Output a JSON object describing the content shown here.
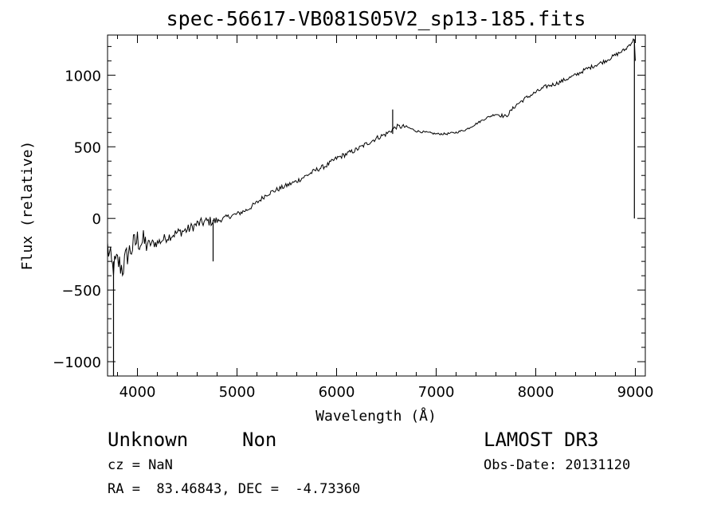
{
  "chart_data": {
    "type": "line",
    "title": "spec-56617-VB081S05V2_sp13-185.fits",
    "xlabel": "Wavelength (Å)",
    "ylabel": "Flux (relative)",
    "xlim": [
      3700,
      9100
    ],
    "ylim": [
      -1100,
      1280
    ],
    "xticks": [
      4000,
      5000,
      6000,
      7000,
      8000,
      9000
    ],
    "yticks": [
      -1000,
      -500,
      0,
      500,
      1000
    ],
    "xtick_labels": [
      "4000",
      "5000",
      "6000",
      "7000",
      "8000",
      "9000"
    ],
    "ytick_labels": [
      "−1000",
      "−500",
      "0",
      "500",
      "1000"
    ],
    "grid": false,
    "series": [
      {
        "x": [
          3700,
          3750,
          3800,
          3850,
          3900,
          3950,
          4000,
          4100,
          4200,
          4300,
          4400,
          4500,
          4600,
          4700,
          4800,
          4900,
          5000,
          5100,
          5200,
          5300,
          5400,
          5500,
          5600,
          5700,
          5800,
          5900,
          6000,
          6100,
          6200,
          6300,
          6400,
          6500,
          6560,
          6600,
          6700,
          6800,
          6900,
          7000,
          7100,
          7200,
          7300,
          7400,
          7500,
          7600,
          7700,
          7800,
          7900,
          8000,
          8100,
          8200,
          8300,
          8400,
          8500,
          8600,
          8700,
          8800,
          8900,
          8950,
          8990,
          9000
        ],
        "values": [
          -200,
          -350,
          -300,
          -350,
          -250,
          -200,
          -150,
          -180,
          -170,
          -130,
          -100,
          -80,
          -40,
          -20,
          -20,
          10,
          30,
          60,
          110,
          170,
          200,
          230,
          260,
          300,
          340,
          370,
          420,
          450,
          480,
          520,
          560,
          590,
          620,
          640,
          640,
          610,
          600,
          590,
          590,
          600,
          620,
          660,
          700,
          730,
          710,
          790,
          840,
          880,
          920,
          940,
          970,
          1000,
          1040,
          1070,
          1100,
          1140,
          1180,
          1220,
          1250,
          1100
        ]
      }
    ],
    "spikes": [
      {
        "x": 3760,
        "values": [
          -430,
          -1100,
          -300
        ]
      },
      {
        "x": 4760,
        "values": [
          -20,
          -300,
          -10
        ]
      },
      {
        "x": 6563,
        "values": [
          590,
          760,
          600
        ]
      },
      {
        "x": 8990,
        "values": [
          1250,
          0
        ]
      }
    ]
  },
  "info": {
    "object_class": "Unknown",
    "object_subclass": "Non",
    "cz": "cz = NaN",
    "coords": "RA =  83.46843, DEC =  -4.73360",
    "survey": "LAMOST DR3",
    "obs_date": "Obs-Date: 20131120"
  }
}
